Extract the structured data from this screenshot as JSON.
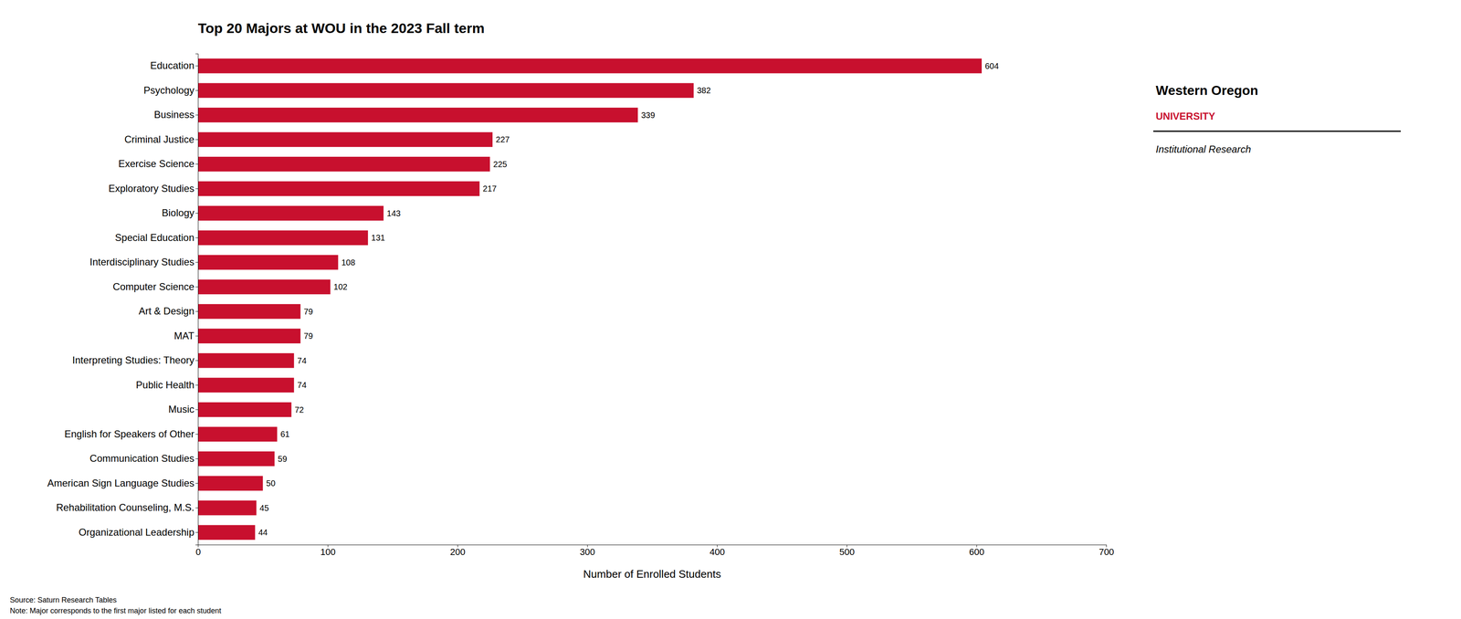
{
  "chart_data": {
    "type": "bar",
    "orientation": "horizontal",
    "title": "Top 20 Majors at WOU in the 2023 Fall term",
    "xlabel": "Number of Enrolled Students",
    "categories": [
      "Organizational Leadership",
      "Rehabilitation Counseling, M.S.",
      "American Sign Language Studies",
      "Communication Studies",
      "English for Speakers of Other",
      "Music",
      "Public Health",
      "Interpreting Studies: Theory",
      "MAT",
      "Art & Design",
      "Computer Science",
      "Interdisciplinary Studies",
      "Special Education",
      "Biology",
      "Exploratory Studies",
      "Exercise Science",
      "Criminal Justice",
      "Business",
      "Psychology",
      "Education"
    ],
    "values": [
      44,
      45,
      50,
      59,
      61,
      72,
      74,
      74,
      79,
      79,
      102,
      108,
      131,
      143,
      217,
      225,
      227,
      339,
      382,
      604
    ],
    "color": "#C8102E",
    "xlim": [
      0,
      700
    ],
    "xticks": [
      0,
      100,
      200,
      300,
      400,
      500,
      600,
      700
    ],
    "grid": false,
    "data_labels": true,
    "annotations": [
      "Source: Saturn Research Tables",
      "Note: Major corresponds to the first major listed for each student",
      "Western Oregon",
      "UNIVERSITY",
      "Institutional Research"
    ]
  }
}
